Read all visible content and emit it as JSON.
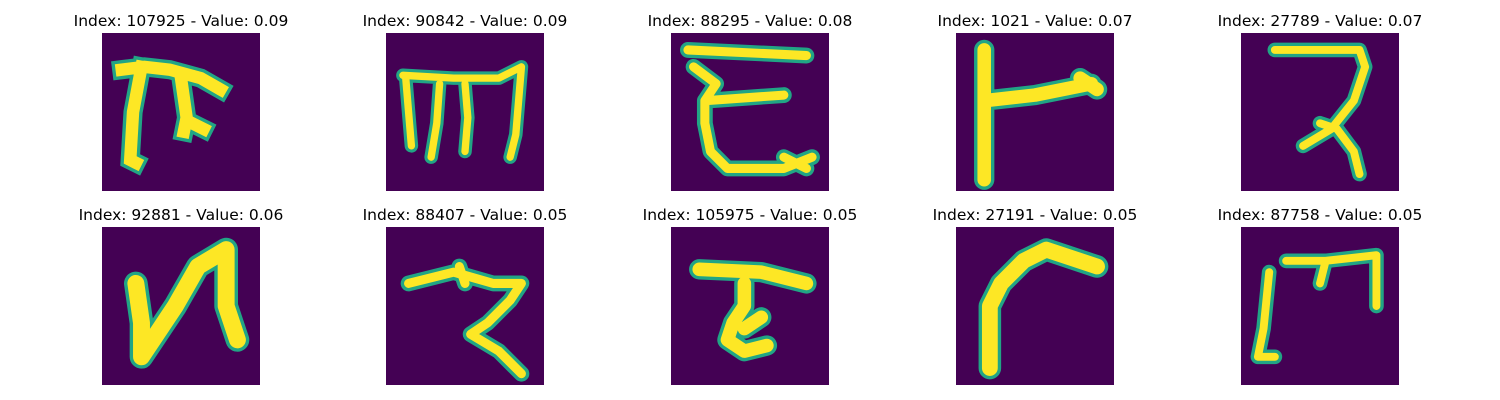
{
  "figure": {
    "images": [
      {
        "title": "Index: 107925 - Value: 0.09",
        "glyph": "grid-like"
      },
      {
        "title": "Index: 90842 - Value: 0.09",
        "glyph": "three-stem"
      },
      {
        "title": "Index: 88295 - Value: 0.08",
        "glyph": "epsilon"
      },
      {
        "title": "Index: 1021 - Value: 0.07",
        "glyph": "t-sideways"
      },
      {
        "title": "Index: 27789 - Value: 0.07",
        "glyph": "reversed-s"
      },
      {
        "title": "Index: 92881 - Value: 0.06",
        "glyph": "n-shape"
      },
      {
        "title": "Index: 88407 - Value: 0.05",
        "glyph": "z-hook"
      },
      {
        "title": "Index: 105975 - Value: 0.05",
        "glyph": "t-hook"
      },
      {
        "title": "Index: 27191 - Value: 0.05",
        "glyph": "gamma"
      },
      {
        "title": "Index: 87758 - Value: 0.05",
        "glyph": "m-bracket"
      }
    ],
    "colors": {
      "background": "#440154",
      "edge": "#21a585",
      "stroke": "#fde725"
    }
  }
}
